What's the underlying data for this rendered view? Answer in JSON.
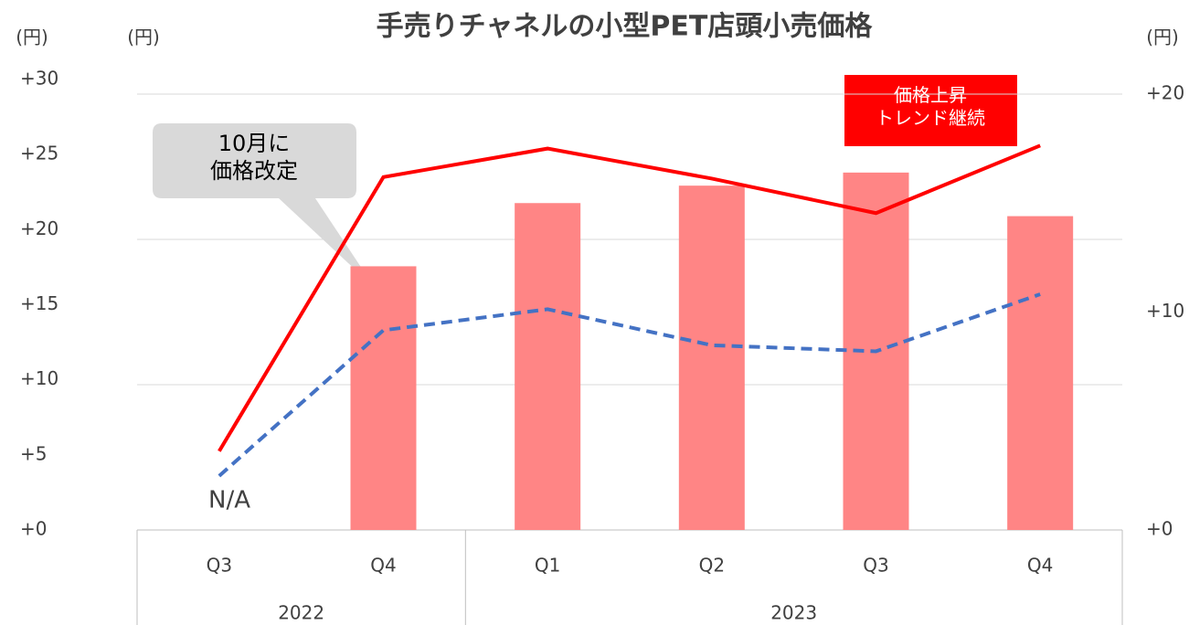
{
  "chart_data": {
    "type": "bar_line",
    "title": "手売りチャネルの小型PET店頭小売価格",
    "ylabel": "(円)",
    "y3label": "(円)",
    "y2label": "(円)",
    "categories": [
      "Q3",
      "Q4",
      "Q1",
      "Q2",
      "Q3",
      "Q4"
    ],
    "groups": [
      {
        "label": "2022",
        "span": 2
      },
      {
        "label": "2023",
        "span": 4
      }
    ],
    "ylim": [
      0,
      30
    ],
    "yticks": [
      {
        "value": 0,
        "label": "+0"
      },
      {
        "value": 5,
        "label": "+5"
      },
      {
        "value": 10,
        "label": "+10"
      },
      {
        "value": 15,
        "label": "+15"
      },
      {
        "value": 20,
        "label": "+20"
      },
      {
        "value": 25,
        "label": "+25"
      },
      {
        "value": 30,
        "label": "+30"
      }
    ],
    "y2lim": [
      0,
      20
    ],
    "y2ticks": [
      {
        "value": 0,
        "label": "+0"
      },
      {
        "value": 10,
        "label": "+10"
      },
      {
        "value": 20,
        "label": "+20"
      }
    ],
    "y3lim": [
      0,
      30
    ],
    "y3ticks": [
      0,
      10,
      20,
      30
    ],
    "grid": true,
    "series": [
      {
        "type": "bar",
        "axis": "y2",
        "color": "#ff8585",
        "values": [
          null,
          12.1,
          15.0,
          15.8,
          16.4,
          14.4
        ]
      },
      {
        "type": "line",
        "axis": "y",
        "color": "#ff0000",
        "dash": false,
        "values": [
          5.25,
          23.5,
          25.4,
          23.4,
          21.1,
          25.6
        ]
      },
      {
        "type": "line",
        "axis": "y",
        "color": "#4472c4",
        "dash": true,
        "values": [
          3.6,
          13.3,
          14.7,
          12.3,
          11.9,
          15.7
        ]
      }
    ],
    "annotations": [
      "N/A",
      "10月に\n価格改定",
      "価格上昇\nトレンド継続"
    ]
  }
}
